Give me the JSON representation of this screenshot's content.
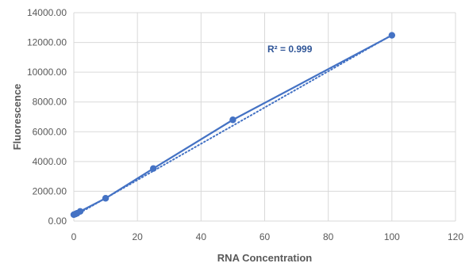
{
  "chart_data": {
    "type": "scatter",
    "title": "",
    "xlabel": "RNA Concentration",
    "ylabel": "Fluorescence",
    "xlim": [
      0,
      120
    ],
    "ylim": [
      0,
      14000
    ],
    "x_ticks": [
      0,
      20,
      40,
      60,
      80,
      100,
      120
    ],
    "y_ticks": [
      0,
      2000,
      4000,
      6000,
      8000,
      10000,
      12000,
      14000
    ],
    "x_tick_labels": [
      "0",
      "20",
      "40",
      "60",
      "80",
      "100",
      "120"
    ],
    "y_tick_labels": [
      "0.00",
      "2000.00",
      "4000.00",
      "6000.00",
      "8000.00",
      "10000.00",
      "12000.00",
      "14000.00"
    ],
    "grid": true,
    "legend": "none",
    "series": [
      {
        "x": [
          0,
          0.5,
          1,
          2,
          10,
          25,
          50,
          100
        ],
        "y": [
          430,
          470,
          520,
          650,
          1530,
          3530,
          6800,
          12480
        ],
        "color": "#4472C4",
        "connected": true
      }
    ],
    "trendline": {
      "type": "linear",
      "style": "dotted",
      "x": [
        0,
        100
      ],
      "y": [
        320,
        12500
      ],
      "color": "#4472C4",
      "label": "R² = 0.999"
    }
  }
}
